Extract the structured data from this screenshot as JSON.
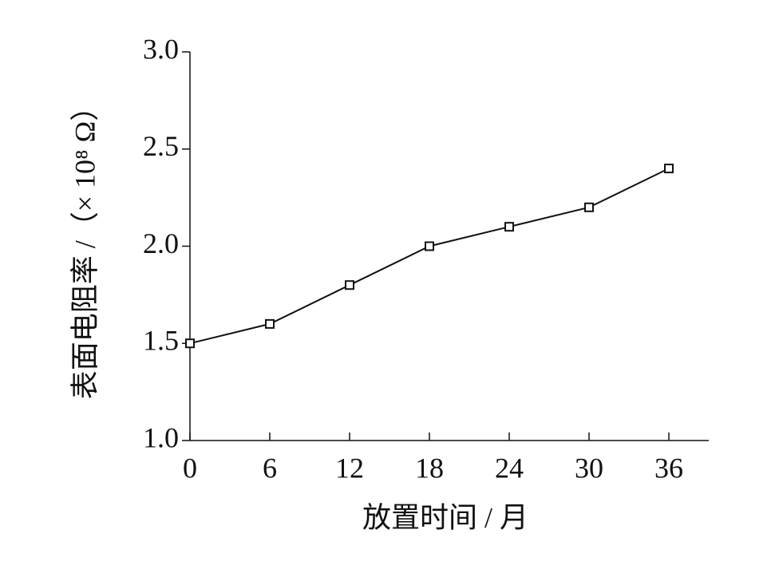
{
  "chart_data": {
    "type": "line",
    "x_label": "放置时间 / 月",
    "y_label": "表面电阻率 /（× 10⁸ Ω）",
    "x": [
      0,
      6,
      12,
      18,
      24,
      30,
      36
    ],
    "series": [
      {
        "color": "#111111",
        "values": [
          1.5,
          1.6,
          1.8,
          2.0,
          2.1,
          2.2,
          2.4
        ]
      }
    ],
    "xlim": [
      0,
      39
    ],
    "xticks": [
      0,
      6,
      12,
      18,
      24,
      30,
      36
    ],
    "ylim": [
      1,
      3
    ],
    "yticks": [
      {
        "value": 1,
        "label": "1.0"
      },
      1.5,
      {
        "value": 2,
        "label": "2.0"
      },
      2.5,
      {
        "value": 3,
        "label": "3.0"
      }
    ],
    "grid": false
  }
}
